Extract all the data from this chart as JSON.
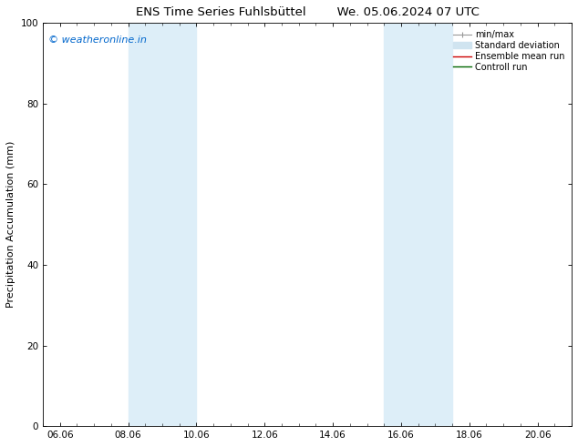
{
  "title_left": "ENS Time Series Fuhlsbüttel",
  "title_right": "We. 05.06.2024 07 UTC",
  "ylabel": "Precipitation Accumulation (mm)",
  "watermark": "© weatheronline.in",
  "watermark_color": "#0066cc",
  "ylim": [
    0,
    100
  ],
  "xlim_start": 5.5,
  "xlim_end": 21.0,
  "xtick_labels": [
    "06.06",
    "08.06",
    "10.06",
    "12.06",
    "14.06",
    "16.06",
    "18.06",
    "20.06"
  ],
  "xtick_positions": [
    6.0,
    8.0,
    10.0,
    12.0,
    14.0,
    16.0,
    18.0,
    20.0
  ],
  "ytick_positions": [
    0,
    20,
    40,
    60,
    80,
    100
  ],
  "shaded_bands": [
    {
      "x_start": 8.0,
      "x_end": 10.0,
      "color": "#ddeef8",
      "alpha": 1.0
    },
    {
      "x_start": 15.5,
      "x_end": 16.5,
      "color": "#ddeef8",
      "alpha": 1.0
    },
    {
      "x_start": 16.5,
      "x_end": 17.5,
      "color": "#ddeef8",
      "alpha": 1.0
    }
  ],
  "legend_entries": [
    {
      "label": "min/max",
      "color": "#999999",
      "lw": 1.0,
      "style": "line_with_caps"
    },
    {
      "label": "Standard deviation",
      "color": "#ccddee",
      "lw": 5,
      "style": "line"
    },
    {
      "label": "Ensemble mean run",
      "color": "#cc0000",
      "lw": 1.0,
      "style": "line"
    },
    {
      "label": "Controll run",
      "color": "#006600",
      "lw": 1.0,
      "style": "line"
    }
  ],
  "bg_color": "#ffffff",
  "plot_bg_color": "#ffffff",
  "border_color": "#000000",
  "title_fontsize": 9.5,
  "label_fontsize": 8,
  "tick_fontsize": 7.5,
  "legend_fontsize": 7
}
